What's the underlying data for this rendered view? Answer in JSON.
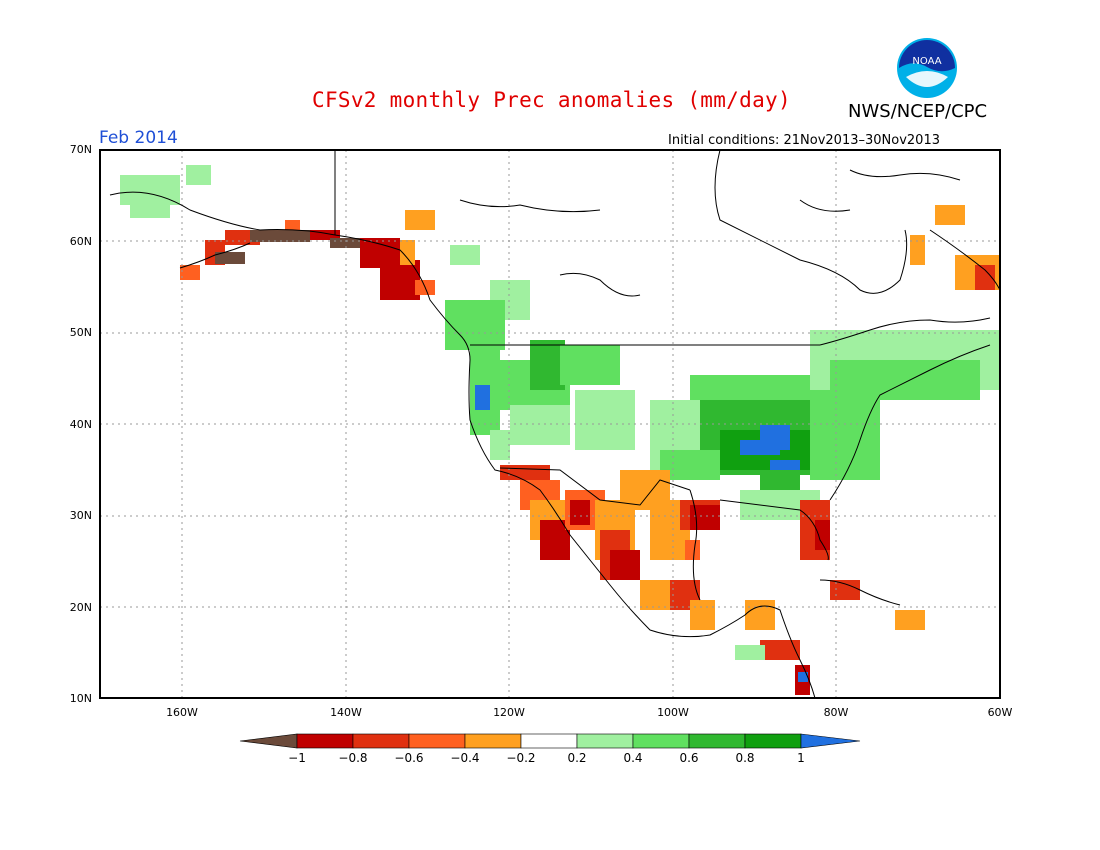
{
  "title": "CFSv2 monthly Prec anomalies (mm/day)",
  "agency": "NWS/NCEP/CPC",
  "logo_text": "NOAA",
  "month": "Feb 2014",
  "initial_conditions": "Initial conditions: 21Nov2013–30Nov2013",
  "lat_labels": [
    "70N",
    "60N",
    "50N",
    "40N",
    "30N",
    "20N",
    "10N"
  ],
  "lon_labels": [
    "160W",
    "140W",
    "120W",
    "100W",
    "80W",
    "60W"
  ],
  "colorbar": {
    "labels": [
      "−1",
      "−0.8",
      "−0.6",
      "−0.4",
      "−0.2",
      "0.2",
      "0.4",
      "0.6",
      "0.8",
      "1"
    ],
    "colors": [
      "#6b4a3a",
      "#c00000",
      "#e03010",
      "#ff6020",
      "#ffa020",
      "#ffffff",
      "#a0f0a0",
      "#60e060",
      "#30b830",
      "#10a010",
      "#2070e0"
    ]
  },
  "colors": {
    "title": "#e00000",
    "month": "#1f4fd6",
    "grid": "#999999",
    "land_outline": "#000000"
  }
}
